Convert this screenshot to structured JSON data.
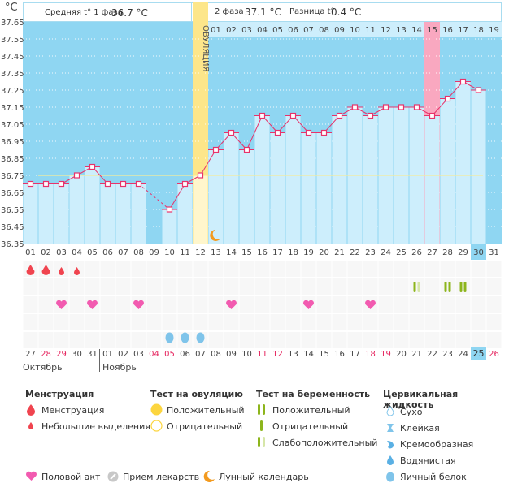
{
  "header": {
    "unit": "°C",
    "phase1_label": "Средняя t° 1 фаза",
    "phase1_value": "36.7 °C",
    "phase2_label": "2 фаза",
    "phase2_value": "37.1 °C",
    "diff_label": "Разница t°",
    "diff_value": "0.4 °C",
    "ovulation_label": "ОВУЛЯЦИЯ"
  },
  "colors": {
    "sky": "#8fd6f2",
    "bar": "#cdeefc",
    "line": "#e8336b",
    "coverline": "#f5ec9a",
    "ovulation": "#fde68a",
    "peak": "#f9a8c0",
    "red_day": "#e5245e"
  },
  "chart_data": {
    "type": "bar",
    "title": "",
    "ylabel": "°C",
    "ylim": [
      36.35,
      37.65
    ],
    "yticks": [
      "37.65",
      "37.55",
      "37.45",
      "37.35",
      "37.25",
      "37.15",
      "37.05",
      "36.95",
      "36.85",
      "36.75",
      "36.65",
      "36.55",
      "36.45",
      "36.35"
    ],
    "cycle_days": [
      "01",
      "02",
      "03",
      "04",
      "05",
      "06",
      "07",
      "08",
      "09",
      "10",
      "11",
      "12",
      "13",
      "14",
      "15",
      "16",
      "17",
      "18",
      "19",
      "20",
      "21",
      "22",
      "23",
      "24",
      "25",
      "26",
      "27",
      "28",
      "29",
      "30",
      "31"
    ],
    "phase2_days": [
      "01",
      "02",
      "03",
      "04",
      "05",
      "06",
      "07",
      "08",
      "09",
      "10",
      "11",
      "12",
      "13",
      "14",
      "15",
      "16",
      "17",
      "18",
      "19"
    ],
    "values": [
      36.7,
      36.7,
      36.7,
      36.75,
      36.8,
      36.7,
      36.7,
      36.7,
      null,
      36.55,
      36.7,
      36.75,
      36.9,
      37.0,
      36.9,
      37.1,
      37.0,
      37.1,
      37.0,
      37.0,
      37.1,
      37.15,
      37.1,
      37.15,
      37.15,
      37.15,
      37.1,
      37.2,
      37.3,
      37.25,
      null
    ],
    "coverline": 36.75,
    "ovulation_day": 12,
    "peak_phase2_day": 15,
    "current_cycle_day": 30,
    "moon_day": 13
  },
  "symptoms": {
    "menstruation": [
      {
        "day": 1,
        "type": "heavy"
      },
      {
        "day": 2,
        "type": "heavy"
      },
      {
        "day": 3,
        "type": "light"
      },
      {
        "day": 4,
        "type": "light"
      }
    ],
    "pregnancy_tests": [
      {
        "day": 26,
        "type": "weak"
      },
      {
        "day": 28,
        "type": "positive"
      },
      {
        "day": 29,
        "type": "positive"
      }
    ],
    "intercourse": [
      3,
      5,
      8,
      14,
      19,
      23
    ],
    "cervical_fluid": [
      {
        "day": 10,
        "type": "egg-white"
      },
      {
        "day": 11,
        "type": "egg-white"
      },
      {
        "day": 12,
        "type": "egg-white"
      }
    ]
  },
  "calendar": {
    "dates": [
      "27",
      "28",
      "29",
      "30",
      "31",
      "01",
      "02",
      "03",
      "04",
      "05",
      "06",
      "07",
      "08",
      "09",
      "10",
      "11",
      "12",
      "13",
      "14",
      "15",
      "16",
      "17",
      "18",
      "19",
      "20",
      "21",
      "22",
      "23",
      "24",
      "25",
      "26"
    ],
    "red": [
      1,
      2,
      8,
      9,
      15,
      16,
      22,
      23,
      30
    ],
    "today_index": 29,
    "months": [
      {
        "label": "Октябрь"
      },
      {
        "label": "Ноябрь"
      }
    ]
  },
  "legend": {
    "menstruation": {
      "title": "Менструация",
      "items": [
        "Менструация",
        "Небольшие выделения"
      ]
    },
    "ovulation_test": {
      "title": "Тест на овуляцию",
      "items": [
        "Положительный",
        "Отрицательный"
      ]
    },
    "pregnancy_test": {
      "title": "Тест на беременность",
      "items": [
        "Положительный",
        "Отрицательный",
        "Слабоположительный"
      ]
    },
    "cervical": {
      "title": "Цервикальная жидкость",
      "items": [
        "Сухо",
        "Клейкая",
        "Кремообразная",
        "Водянистая",
        "Яичный белок"
      ]
    },
    "other": [
      "Половой акт",
      "Прием лекарств",
      "Лунный календарь"
    ]
  }
}
